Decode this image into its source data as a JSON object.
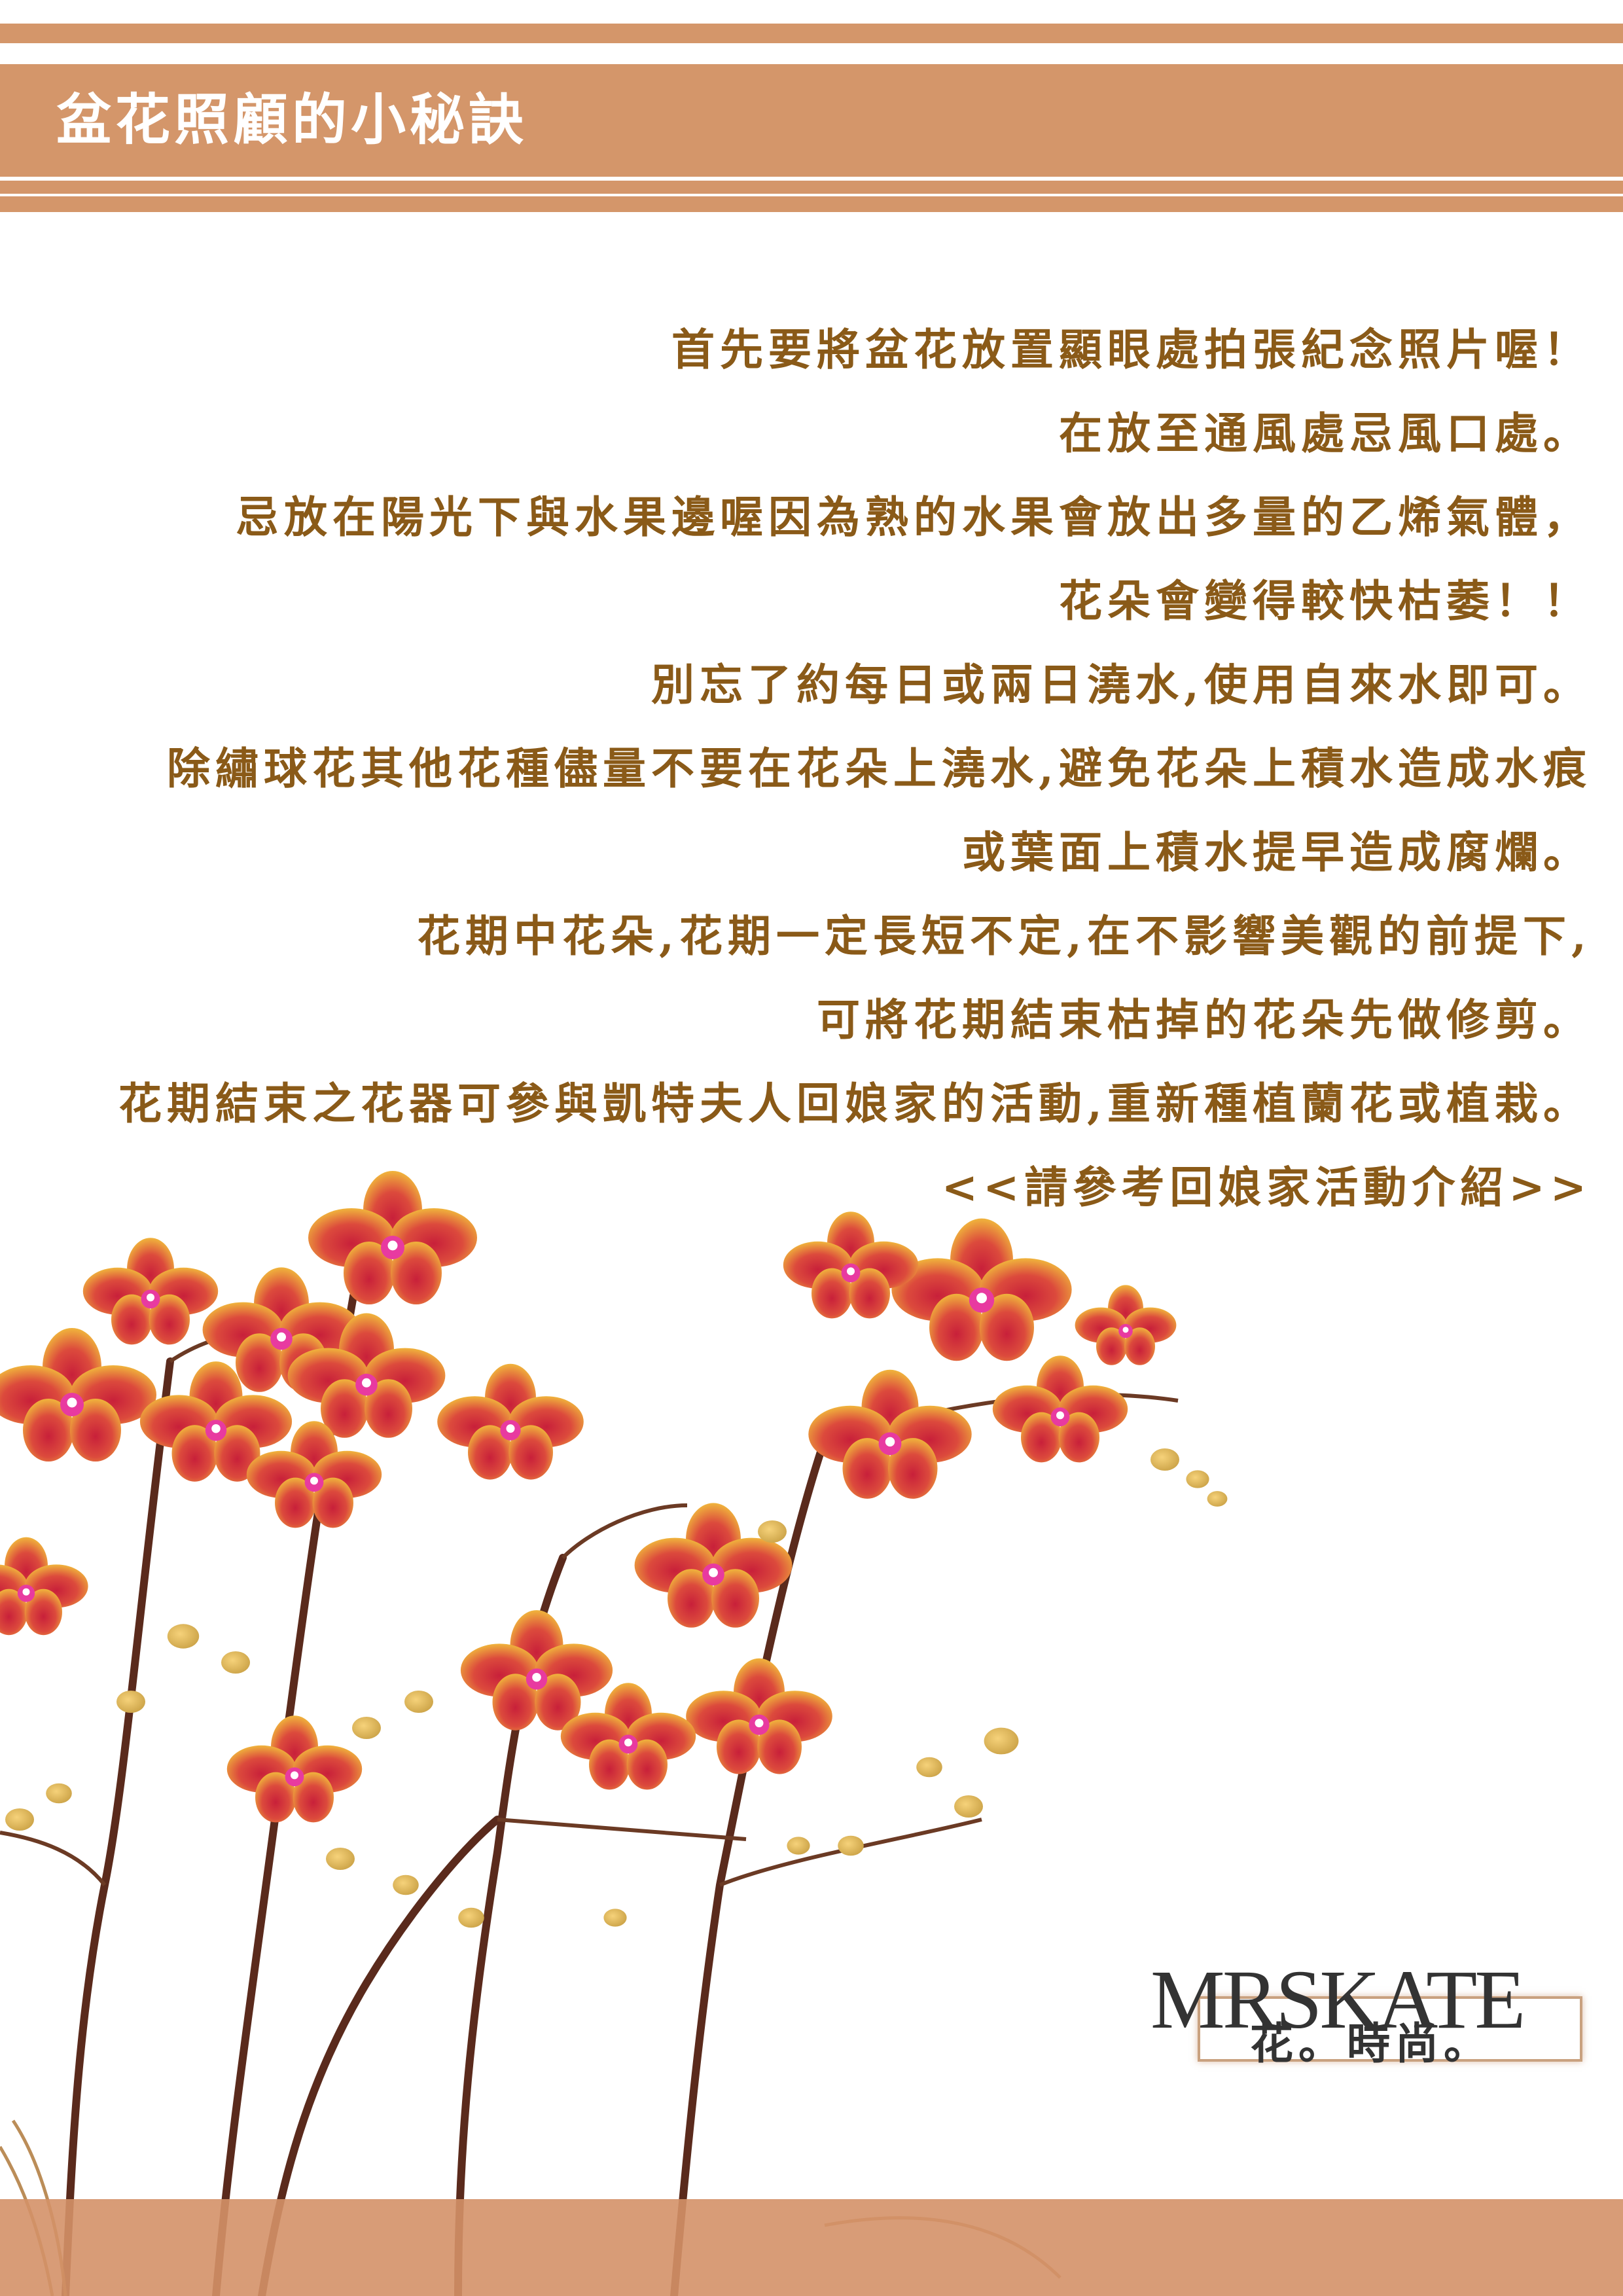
{
  "header": {
    "title": "盆花照顧的小秘訣"
  },
  "content": {
    "lines": [
      "首先要將盆花放置顯眼處拍張紀念照片喔！",
      "在放至通風處忌風口處。",
      "忌放在陽光下與水果邊喔因為熟的水果會放出多量的乙烯氣體，",
      "花朵會變得較快枯萎！！",
      "別忘了約每日或兩日澆水,使用自來水即可。",
      "除繡球花其他花種儘量不要在花朵上澆水,避免花朵上積水造成水痕",
      "或葉面上積水提早造成腐爛。",
      "花期中花朵,花期一定長短不定,在不影響美觀的前提下,",
      "可將花期結束枯掉的花朵先做修剪。",
      "花期結束之花器可參與凱特夫人回娘家的活動,重新種植蘭花或植栽。",
      "<<請參考回娘家活動介紹>>"
    ]
  },
  "logo": {
    "brand": "MRSKATE",
    "subtitle": "花。時尚。"
  },
  "colors": {
    "accent": "#d4966a",
    "text": "#8a5a18",
    "petal_red": "#c8203a",
    "petal_yellow": "#f0b43c"
  }
}
